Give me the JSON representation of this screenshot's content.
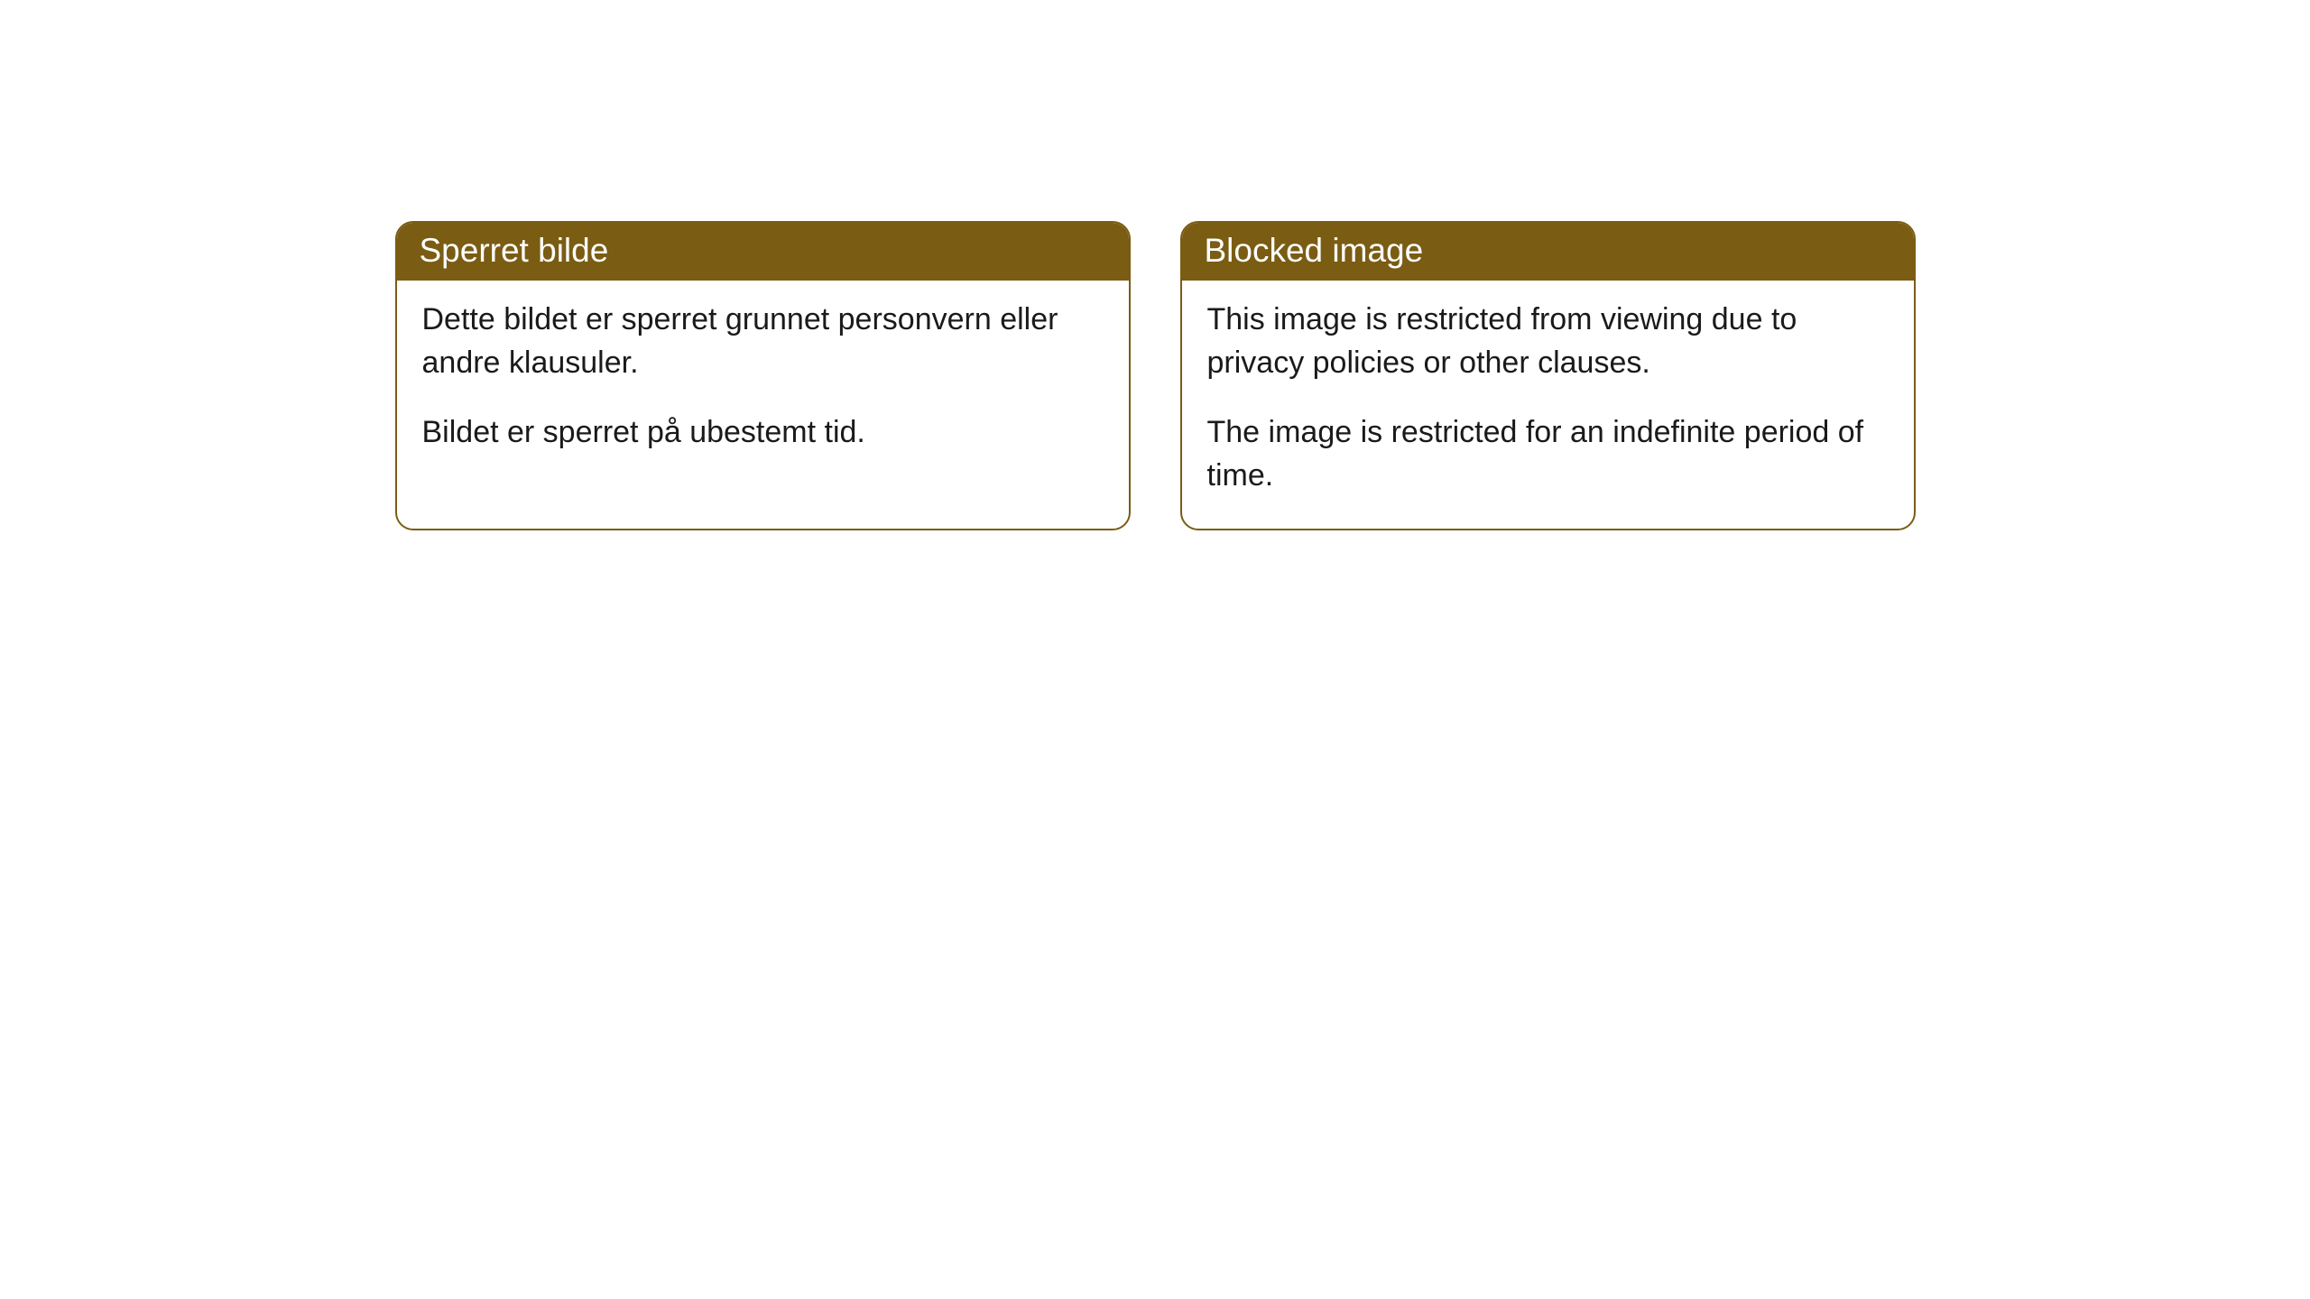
{
  "cards": [
    {
      "title": "Sperret bilde",
      "paragraph1": "Dette bildet er sperret grunnet personvern eller andre klausuler.",
      "paragraph2": "Bildet er sperret på ubestemt tid."
    },
    {
      "title": "Blocked image",
      "paragraph1": "This image is restricted from viewing due to privacy policies or other clauses.",
      "paragraph2": "The image is restricted for an indefinite period of time."
    }
  ],
  "styling": {
    "header_bg_color": "#7a5c13",
    "header_text_color": "#ffffff",
    "border_color": "#7a5c13",
    "body_bg_color": "#ffffff",
    "body_text_color": "#1a1a1a",
    "border_radius": 20,
    "header_fontsize": 37,
    "body_fontsize": 34
  }
}
